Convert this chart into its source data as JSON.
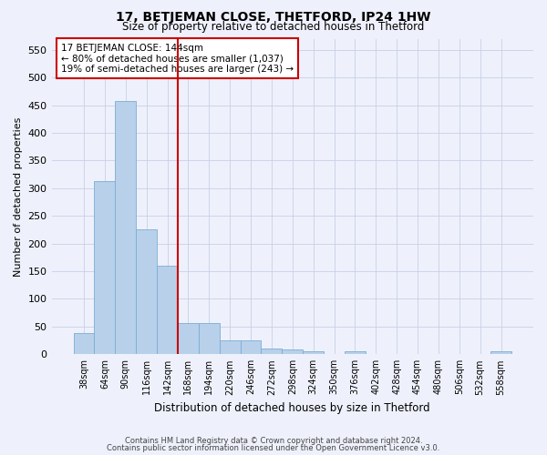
{
  "title": "17, BETJEMAN CLOSE, THETFORD, IP24 1HW",
  "subtitle": "Size of property relative to detached houses in Thetford",
  "xlabel": "Distribution of detached houses by size in Thetford",
  "ylabel": "Number of detached properties",
  "footnote1": "Contains HM Land Registry data © Crown copyright and database right 2024.",
  "footnote2": "Contains public sector information licensed under the Open Government Licence v3.0.",
  "categories": [
    "38sqm",
    "64sqm",
    "90sqm",
    "116sqm",
    "142sqm",
    "168sqm",
    "194sqm",
    "220sqm",
    "246sqm",
    "272sqm",
    "298sqm",
    "324sqm",
    "350sqm",
    "376sqm",
    "402sqm",
    "428sqm",
    "454sqm",
    "480sqm",
    "506sqm",
    "532sqm",
    "558sqm"
  ],
  "values": [
    38,
    312,
    457,
    225,
    160,
    57,
    57,
    25,
    25,
    10,
    8,
    5,
    0,
    5,
    0,
    0,
    0,
    0,
    0,
    0,
    5
  ],
  "bar_color": "#b8d0ea",
  "bar_edge_color": "#7aadd4",
  "vline_index": 4,
  "vline_color": "#cc0000",
  "ylim": [
    0,
    570
  ],
  "yticks": [
    0,
    50,
    100,
    150,
    200,
    250,
    300,
    350,
    400,
    450,
    500,
    550
  ],
  "annotation_title": "17 BETJEMAN CLOSE: 144sqm",
  "annotation_line1": "← 80% of detached houses are smaller (1,037)",
  "annotation_line2": "19% of semi-detached houses are larger (243) →",
  "annotation_box_color": "#cc0000",
  "bg_color": "#eef1fb",
  "grid_color": "#c8cfe8",
  "title_fontsize": 10,
  "subtitle_fontsize": 8.5,
  "ylabel_fontsize": 8,
  "xlabel_fontsize": 8.5
}
